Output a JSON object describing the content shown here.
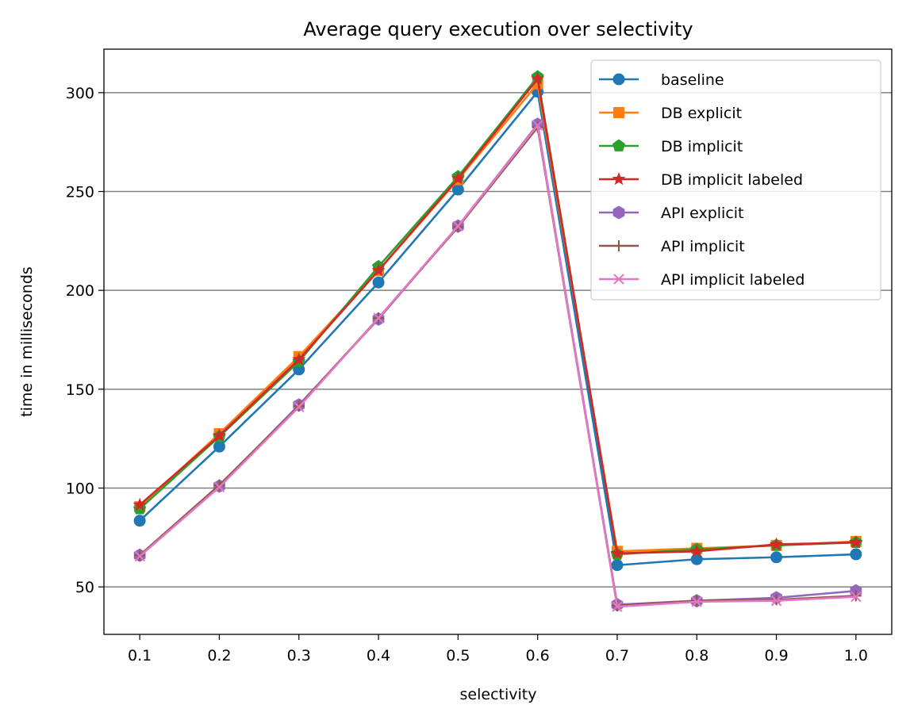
{
  "chart_data": {
    "type": "line",
    "title": "Average query execution over selectivity",
    "xlabel": "selectivity",
    "ylabel": "time in milliseconds",
    "x": [
      "0.1",
      "0.2",
      "0.3",
      "0.4",
      "0.5",
      "0.6",
      "0.7",
      "0.8",
      "0.9",
      "1.0"
    ],
    "xlim": [
      0.055,
      1.045
    ],
    "ylim": [
      26,
      322
    ],
    "yticks": [
      "50",
      "100",
      "150",
      "200",
      "250",
      "300"
    ],
    "grid": "horizontal",
    "legend_position": "top-right",
    "series": [
      {
        "name": "baseline",
        "color": "#1f77b4",
        "marker": "circle",
        "values": [
          83.5,
          121,
          160,
          204,
          251,
          300.5,
          61,
          64,
          65,
          66.5
        ]
      },
      {
        "name": "DB explicit",
        "color": "#ff7f0e",
        "marker": "square",
        "values": [
          90.5,
          127.5,
          166.5,
          210,
          256,
          304.5,
          68,
          69.5,
          71,
          73
        ]
      },
      {
        "name": "DB implicit",
        "color": "#2ca02c",
        "marker": "pentagon",
        "values": [
          89.5,
          126,
          164,
          212,
          257.5,
          308,
          66.5,
          69,
          71,
          72.5
        ]
      },
      {
        "name": "DB implicit labeled",
        "color": "#d62728",
        "marker": "star",
        "values": [
          91.5,
          126.5,
          165,
          210,
          256.5,
          307,
          67,
          68,
          71.5,
          72.5
        ]
      },
      {
        "name": "API explicit",
        "color": "#9467bd",
        "marker": "hexagon",
        "values": [
          66,
          101,
          142,
          185.5,
          232.5,
          284,
          41,
          43,
          44.5,
          48
        ]
      },
      {
        "name": "API implicit",
        "color": "#8c564b",
        "marker": "plus",
        "values": [
          66,
          101.5,
          141.5,
          186,
          232,
          282.5,
          40.5,
          43,
          43.5,
          45.5
        ]
      },
      {
        "name": "API implicit labeled",
        "color": "#e377c2",
        "marker": "x",
        "values": [
          65.5,
          100.5,
          141,
          186,
          232.5,
          283.5,
          40,
          42.5,
          43,
          45
        ]
      }
    ]
  }
}
